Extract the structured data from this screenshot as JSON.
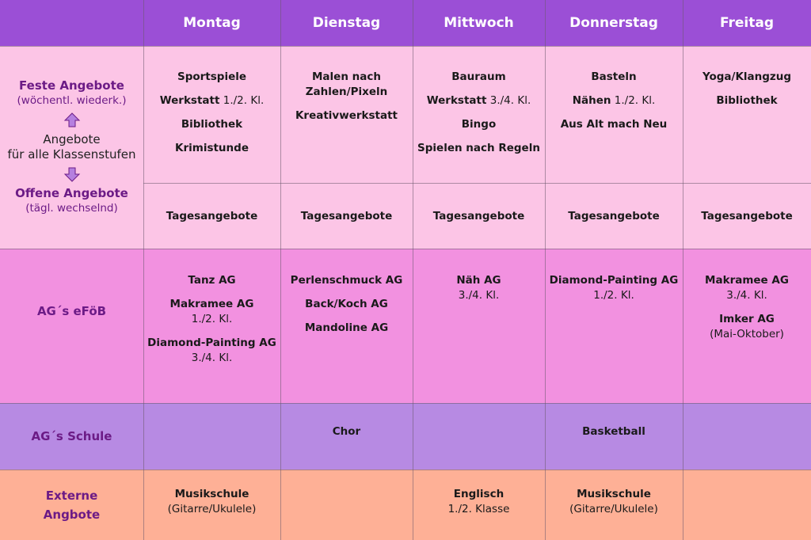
{
  "colors": {
    "header": "#9b4fd6",
    "feste_offene": "#fcc5e6",
    "efob": "#f291e0",
    "schule": "#b78ae3",
    "externe": "#feb096"
  },
  "days": [
    "Montag",
    "Dienstag",
    "Mittwoch",
    "Donnerstag",
    "Freitag"
  ],
  "labels": {
    "feste_title": "Feste Angebote",
    "feste_sub": "(wöchentl. wiederk.)",
    "middle_line1": "Angebote",
    "middle_line2": "für alle Klassenstufen",
    "offene_title": "Offene Angebote",
    "offene_sub": "(tägl. wechselnd)",
    "efob": "AG´s eFöB",
    "schule": "AG´s Schule",
    "externe_line1": "Externe",
    "externe_line2": "Angbote"
  },
  "arrows": {
    "up": "arrow-up-icon",
    "down": "arrow-down-icon"
  },
  "feste": {
    "mon": [
      [
        "Sportspiele",
        ""
      ],
      [
        "Werkstatt",
        " 1./2. Kl."
      ],
      [
        "Bibliothek",
        ""
      ],
      [
        "Krimistunde",
        ""
      ]
    ],
    "tue": [
      [
        "Malen nach",
        ""
      ],
      [
        "Zahlen/Pixeln",
        ""
      ],
      [
        "Kreativwerkstatt",
        ""
      ]
    ],
    "wed": [
      [
        "Bauraum",
        ""
      ],
      [
        "Werkstatt",
        " 3./4. Kl."
      ],
      [
        "Bingo",
        ""
      ],
      [
        "Spielen nach Regeln",
        ""
      ]
    ],
    "thu": [
      [
        "Basteln",
        ""
      ],
      [
        "Nähen",
        " 1./2. Kl."
      ],
      [
        "Aus Alt mach Neu",
        ""
      ]
    ],
    "fri": [
      [
        "Yoga/Klangzug",
        ""
      ],
      [
        "Bibliothek",
        ""
      ]
    ]
  },
  "offene": [
    "Tagesangebote",
    "Tagesangebote",
    "Tagesangebote",
    "Tagesangebote",
    "Tagesangebote"
  ],
  "efob": {
    "mon": [
      [
        "Tanz AG",
        ""
      ],
      [
        "Makramee AG",
        "1./2. Kl."
      ],
      [
        "Diamond-Painting AG",
        "3./4. Kl."
      ]
    ],
    "tue": [
      [
        "Perlenschmuck AG",
        ""
      ],
      [
        "Back/Koch AG",
        ""
      ],
      [
        "Mandoline AG",
        ""
      ]
    ],
    "wed": [
      [
        "Näh AG",
        "3./4. Kl."
      ]
    ],
    "thu": [
      [
        "Diamond-Painting AG",
        "1./2. Kl."
      ]
    ],
    "fri": [
      [
        "Makramee AG",
        "3./4. Kl."
      ],
      [
        "Imker AG",
        "(Mai-Oktober)"
      ]
    ]
  },
  "schule": [
    "",
    "Chor",
    "",
    "Basketball",
    ""
  ],
  "externe": {
    "mon": [
      "Musikschule",
      "(Gitarre/Ukulele)"
    ],
    "tue": [
      "",
      ""
    ],
    "wed": [
      "Englisch",
      "1./2. Klasse"
    ],
    "thu": [
      "Musikschule",
      "(Gitarre/Ukulele)"
    ],
    "fri": [
      "",
      ""
    ]
  }
}
